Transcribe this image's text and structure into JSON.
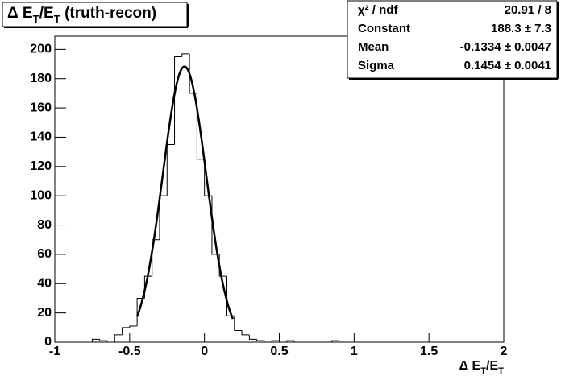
{
  "chart_data": {
    "type": "histogram",
    "title": [
      {
        "text": "Δ E"
      },
      {
        "text": "T",
        "sub": true
      },
      {
        "text": "/E"
      },
      {
        "text": "T",
        "sub": true
      },
      {
        "text": " (truth-recon)"
      }
    ],
    "xlabel": [
      {
        "text": "Δ E"
      },
      {
        "text": "T",
        "sub": true
      },
      {
        "text": "/E"
      },
      {
        "text": "T",
        "sub": true
      }
    ],
    "bins": [
      -1,
      -0.95,
      -0.9,
      -0.85,
      -0.8,
      -0.75,
      -0.7,
      -0.65,
      -0.6,
      -0.55,
      -0.5,
      -0.45,
      -0.4,
      -0.35,
      -0.3,
      -0.25,
      -0.2,
      -0.15,
      -0.1,
      -0.05,
      0,
      0.05,
      0.1,
      0.15,
      0.2,
      0.25,
      0.3,
      0.35,
      0.4,
      0.45,
      0.5,
      0.55,
      0.6,
      0.65,
      0.7,
      0.75,
      0.8,
      0.85,
      0.9,
      0.95,
      1,
      1.05,
      1.1,
      1.15,
      1.2,
      1.25,
      1.3,
      1.35,
      1.4,
      1.45,
      1.5,
      1.55,
      1.6,
      1.65,
      1.7,
      1.75,
      1.8,
      1.85,
      1.9,
      1.95,
      2
    ],
    "values": [
      0,
      0,
      0,
      0,
      0,
      2,
      1,
      0,
      5,
      10,
      11,
      30,
      45,
      70,
      100,
      135,
      195,
      197,
      170,
      125,
      100,
      60,
      45,
      18,
      8,
      5,
      2,
      1,
      0,
      1,
      0,
      1,
      0,
      0,
      0,
      0,
      0,
      1,
      0,
      0,
      0,
      0,
      0,
      0,
      0,
      0,
      0,
      0,
      0,
      0,
      0,
      0,
      0,
      0,
      0,
      0,
      0,
      0,
      0,
      0
    ],
    "color": "#000000",
    "xlim": [
      -1,
      2
    ],
    "ylim": [
      0,
      209
    ],
    "xticks": [
      -1,
      -0.5,
      0,
      0.5,
      1,
      1.5,
      2
    ],
    "yticks": [
      0,
      20,
      40,
      60,
      80,
      100,
      120,
      140,
      160,
      180,
      200
    ],
    "fit": {
      "constant": 188.3,
      "mean": -0.1334,
      "sigma": 0.1454,
      "xrange": [
        -0.45,
        0.19
      ],
      "color": "#000000"
    },
    "stats": [
      {
        "name": "χ² / ndf",
        "value": "20.91 / 8"
      },
      {
        "name": "Constant",
        "value": "188.3 ± 7.3"
      },
      {
        "name": "Mean",
        "value": "-0.1334 ± 0.0047"
      },
      {
        "name": "Sigma",
        "value": "0.1454 ± 0.0041"
      }
    ]
  }
}
